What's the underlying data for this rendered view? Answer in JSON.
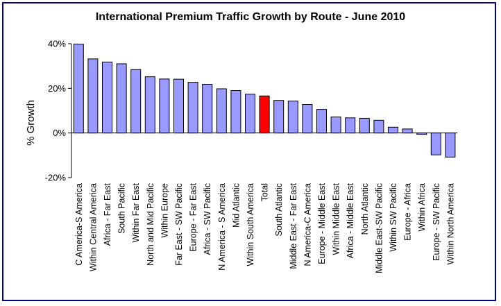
{
  "chart_data": {
    "type": "bar",
    "title": "International Premium Traffic Growth by Route - June 2010",
    "ylabel": "% Growth",
    "xlabel": "",
    "ylim": [
      -20,
      40
    ],
    "yticks": [
      40,
      20,
      0,
      -20
    ],
    "ytick_labels": [
      "40%",
      "20%",
      "0%",
      "-20%"
    ],
    "grid": false,
    "legend": "none",
    "colors": {
      "bar": "#9999ff",
      "highlight": "#ff0000",
      "highlight_category": "Total",
      "outline": "#000000"
    },
    "categories": [
      "C America-S America",
      "Within Central America",
      "Africa - Far East",
      "South Pacific",
      "Within Far East",
      "North and Mid Pacific",
      "Within Europe",
      "Far East - SW Pacific",
      "Europe - Far East",
      "Africa - SW Pacific",
      "N America - S America",
      "Mid Atlantic",
      "Within South America",
      "Total",
      "South Atlantic",
      "Middle East - Far East",
      "N America-C America",
      "Europe - Middle East",
      "Within Middle East",
      "Africa - Middle East",
      "North Atlantic",
      "Middle East-SW Pacific",
      "Within SW Pacific",
      "Europe - Africa",
      "Within Africa",
      "Europe - SW Pacific",
      "Within North America"
    ],
    "values": [
      39.8,
      33.2,
      31.8,
      31.0,
      28.4,
      25.2,
      24.2,
      24.1,
      22.7,
      21.8,
      19.8,
      19.0,
      17.4,
      16.6,
      14.6,
      14.3,
      12.8,
      10.6,
      7.2,
      6.8,
      6.6,
      5.7,
      2.6,
      1.8,
      -0.6,
      -9.8,
      -10.8
    ]
  }
}
